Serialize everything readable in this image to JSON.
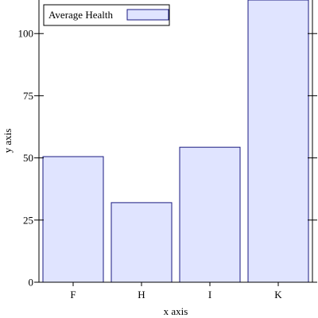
{
  "chart_data": {
    "type": "bar",
    "categories": [
      "F",
      "H",
      "I",
      "K"
    ],
    "series": [
      {
        "name": "Average Health",
        "values": [
          50.5,
          32,
          54.3,
          113.5
        ]
      }
    ],
    "xlabel": "x axis",
    "ylabel": "y axis",
    "ylim": [
      0,
      113.5
    ],
    "yticks": [
      0,
      25,
      50,
      75,
      100
    ],
    "grid": false,
    "legend_position": "top-left",
    "colors": {
      "bar_fill": "#e0e4ff",
      "bar_stroke": "#1a1a80",
      "axis": "#000000"
    }
  }
}
